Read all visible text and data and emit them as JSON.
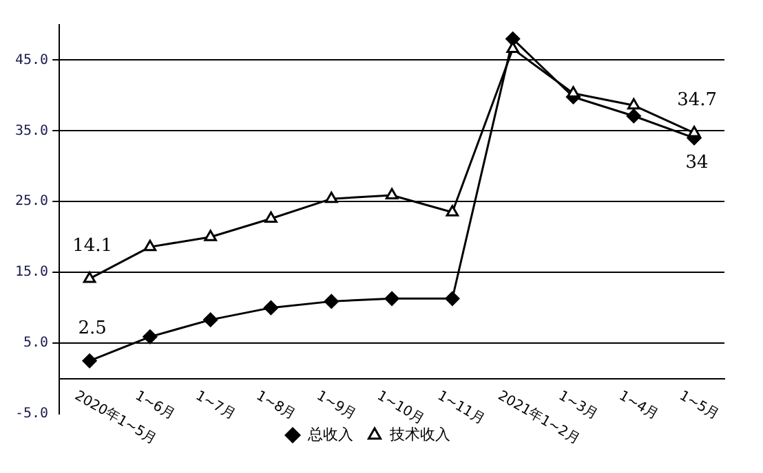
{
  "chart_data": {
    "type": "line",
    "categories": [
      "2020年1~5月",
      "1~6月",
      "1~7月",
      "1~8月",
      "1~9月",
      "1~10月",
      "1~11月",
      "2021年1~2月",
      "1~3月",
      "1~4月",
      "1~5月"
    ],
    "series": [
      {
        "name": "总收入",
        "color": "#000000",
        "marker": "diamond",
        "values": [
          2.5,
          5.9,
          8.3,
          10.0,
          10.9,
          11.3,
          11.3,
          48.0,
          39.8,
          37.1,
          34
        ],
        "value_labels": [
          "2.5",
          null,
          null,
          null,
          null,
          null,
          null,
          null,
          null,
          null,
          "34"
        ]
      },
      {
        "name": "技术收入",
        "color": "#000000",
        "marker": "triangle",
        "values": [
          14.1,
          18.6,
          20.0,
          22.6,
          25.4,
          25.9,
          23.5,
          46.6,
          40.3,
          38.6,
          34.7
        ],
        "value_labels": [
          "14.1",
          null,
          null,
          null,
          null,
          null,
          null,
          null,
          null,
          null,
          "34.7"
        ]
      }
    ],
    "ylim": [
      -5,
      50
    ],
    "yticks": [
      {
        "value": -5,
        "label": "-5.0"
      },
      {
        "value": 5,
        "label": "5.0"
      },
      {
        "value": 15,
        "label": "15.0"
      },
      {
        "value": 25,
        "label": "25.0"
      },
      {
        "value": 35,
        "label": "35.0"
      },
      {
        "value": 45,
        "label": "45.0"
      }
    ],
    "grid": "y",
    "legend": "bottom",
    "line_style": "solid"
  }
}
